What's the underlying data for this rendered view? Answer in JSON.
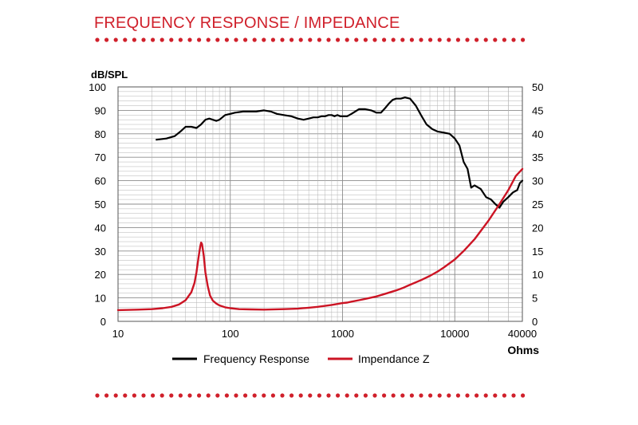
{
  "header": {
    "title": "FREQUENCY RESPONSE / IMPEDANCE"
  },
  "colors": {
    "accent": "#d0202b",
    "frequency_response": "#000000",
    "impedance": "#cc1424",
    "grid": "#b3b3b3",
    "dots": "#d0202b"
  },
  "chart_data": {
    "type": "line",
    "x_scale": "log",
    "xlim": [
      10,
      40000
    ],
    "x_tick_labels": [
      "10",
      "100",
      "1000",
      "10000",
      "40000"
    ],
    "x_ticks": [
      10,
      100,
      1000,
      10000,
      40000
    ],
    "xlabel": "",
    "x_unit_label": "Ohms",
    "ylabel": "dB/SPL",
    "ylim": [
      0,
      100
    ],
    "y_ticks": [
      0,
      10,
      20,
      30,
      40,
      50,
      60,
      70,
      80,
      90,
      100
    ],
    "y2lim": [
      0,
      50
    ],
    "y2_ticks": [
      0,
      5,
      10,
      15,
      20,
      25,
      30,
      35,
      40,
      45,
      50
    ],
    "grid": true,
    "legend_position": "bottom",
    "series": [
      {
        "name": "Frequency Response",
        "axis": "left",
        "x": [
          22,
          27,
          32,
          36,
          40,
          45,
          50,
          55,
          60,
          65,
          70,
          75,
          80,
          90,
          100,
          110,
          130,
          150,
          170,
          200,
          230,
          260,
          300,
          350,
          400,
          450,
          500,
          550,
          600,
          650,
          700,
          750,
          800,
          850,
          900,
          950,
          1000,
          1100,
          1200,
          1400,
          1600,
          1800,
          2000,
          2200,
          2400,
          2600,
          2800,
          3000,
          3300,
          3600,
          4000,
          4500,
          5000,
          5600,
          6300,
          7000,
          8000,
          9000,
          10000,
          11000,
          12000,
          13000,
          14000,
          15000,
          17000,
          19000,
          21000,
          23000,
          25000,
          27000,
          30000,
          33000,
          36000,
          38000,
          40000
        ],
        "y": [
          77.5,
          78,
          79,
          81,
          83,
          83,
          82.5,
          84,
          86,
          86.5,
          86,
          85.5,
          86,
          88,
          88.5,
          89,
          89.5,
          89.5,
          89.5,
          90,
          89.5,
          88.5,
          88,
          87.5,
          86.5,
          86,
          86.5,
          87,
          87,
          87.5,
          87.5,
          88,
          88,
          87.5,
          88,
          87.5,
          87.5,
          87.5,
          88.5,
          90.5,
          90.5,
          90,
          89,
          89,
          91,
          93,
          94.5,
          95,
          95,
          95.5,
          95,
          92,
          88,
          84,
          82,
          81,
          80.5,
          80,
          78,
          75,
          68,
          65,
          57,
          58,
          56.5,
          53,
          52,
          50,
          48.5,
          51,
          53,
          55,
          56,
          59,
          60
        ]
      },
      {
        "name": "Impendance Z",
        "axis": "right",
        "x": [
          10,
          15,
          20,
          25,
          30,
          35,
          40,
          45,
          48,
          50,
          52,
          54,
          55,
          56,
          58,
          60,
          63,
          66,
          70,
          75,
          80,
          90,
          100,
          120,
          150,
          200,
          300,
          400,
          500,
          600,
          700,
          800,
          900,
          1000,
          1100,
          1200,
          1400,
          1600,
          2000,
          2500,
          3000,
          3500,
          4000,
          5000,
          6000,
          7000,
          8000,
          10000,
          12000,
          15000,
          20000,
          25000,
          30000,
          35000,
          40000
        ],
        "y": [
          2.4,
          2.5,
          2.6,
          2.8,
          3.1,
          3.6,
          4.5,
          6.2,
          8.2,
          10.5,
          13.5,
          16,
          16.8,
          16.5,
          14,
          10.5,
          7.5,
          5.5,
          4.4,
          3.8,
          3.4,
          3.0,
          2.8,
          2.6,
          2.55,
          2.5,
          2.6,
          2.7,
          2.9,
          3.1,
          3.3,
          3.5,
          3.7,
          3.9,
          4.0,
          4.2,
          4.5,
          4.8,
          5.3,
          6.0,
          6.6,
          7.2,
          7.8,
          8.8,
          9.7,
          10.6,
          11.5,
          13.2,
          15.0,
          17.5,
          21.5,
          25.0,
          28.0,
          31.0,
          32.5
        ]
      }
    ]
  }
}
